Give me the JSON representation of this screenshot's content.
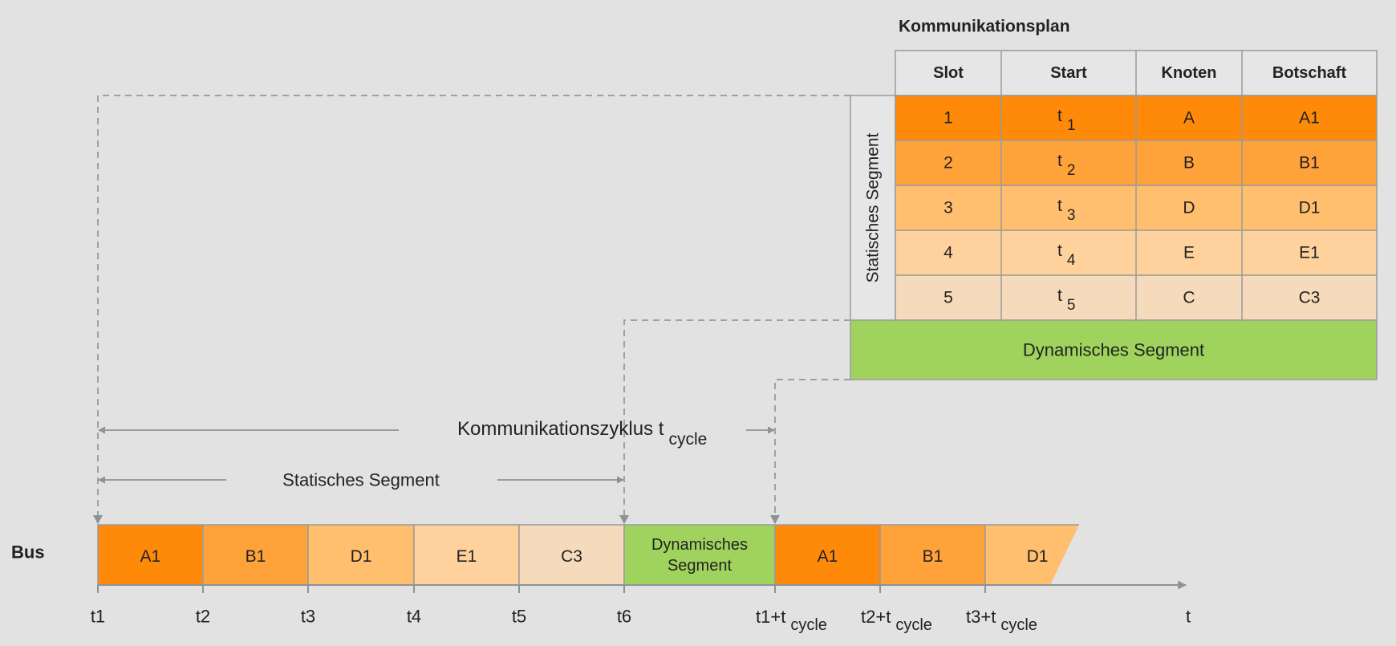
{
  "plan": {
    "title": "Kommunikationsplan",
    "headers": [
      "Slot",
      "Start",
      "Knoten",
      "Botschaft"
    ],
    "static_label": "Statisches Segment",
    "dynamic_label": "Dynamisches Segment",
    "rows": [
      {
        "slot": "1",
        "start_base": "t",
        "start_sub": "1",
        "node": "A",
        "message": "A1",
        "color": "#ff8a0a"
      },
      {
        "slot": "2",
        "start_base": "t",
        "start_sub": "2",
        "node": "B",
        "message": "B1",
        "color": "#ffa23a"
      },
      {
        "slot": "3",
        "start_base": "t",
        "start_sub": "3",
        "node": "D",
        "message": "D1",
        "color": "#ffbf6e"
      },
      {
        "slot": "4",
        "start_base": "t",
        "start_sub": "4",
        "node": "E",
        "message": "E1",
        "color": "#ffd29d"
      },
      {
        "slot": "5",
        "start_base": "t",
        "start_sub": "5",
        "node": "C",
        "message": "C3",
        "color": "#f5dabc"
      }
    ],
    "dynamic_color": "#9fd35e"
  },
  "timeline": {
    "bus_label": "Bus",
    "cycle_label": "Kommunikationszyklus t",
    "cycle_sub": "cycle",
    "static_label": "Statisches Segment",
    "dynamic_line1": "Dynamisches",
    "dynamic_line2": "Segment",
    "axis_label": "t",
    "slots": [
      {
        "label": "A1",
        "color": "#ff8a0a"
      },
      {
        "label": "B1",
        "color": "#ffa23a"
      },
      {
        "label": "D1",
        "color": "#ffbf6e"
      },
      {
        "label": "E1",
        "color": "#ffd29d"
      },
      {
        "label": "C3",
        "color": "#f5dabc"
      }
    ],
    "repeat_slots": [
      {
        "label": "A1",
        "color": "#ff8a0a"
      },
      {
        "label": "B1",
        "color": "#ffa23a"
      },
      {
        "label": "D1",
        "color": "#ffbf6e"
      }
    ],
    "ticks": [
      {
        "base": "t1",
        "sub": ""
      },
      {
        "base": "t2",
        "sub": ""
      },
      {
        "base": "t3",
        "sub": ""
      },
      {
        "base": "t4",
        "sub": ""
      },
      {
        "base": "t5",
        "sub": ""
      },
      {
        "base": "t6",
        "sub": ""
      },
      {
        "base": "t1+t",
        "sub": "cycle"
      },
      {
        "base": "t2+t",
        "sub": "cycle"
      },
      {
        "base": "t3+t",
        "sub": "cycle"
      }
    ]
  },
  "colors": {
    "background": "#e2e2e2",
    "grid": "#9a9a9a",
    "dash": "#a0a0a0",
    "arrow": "#8c9396"
  }
}
